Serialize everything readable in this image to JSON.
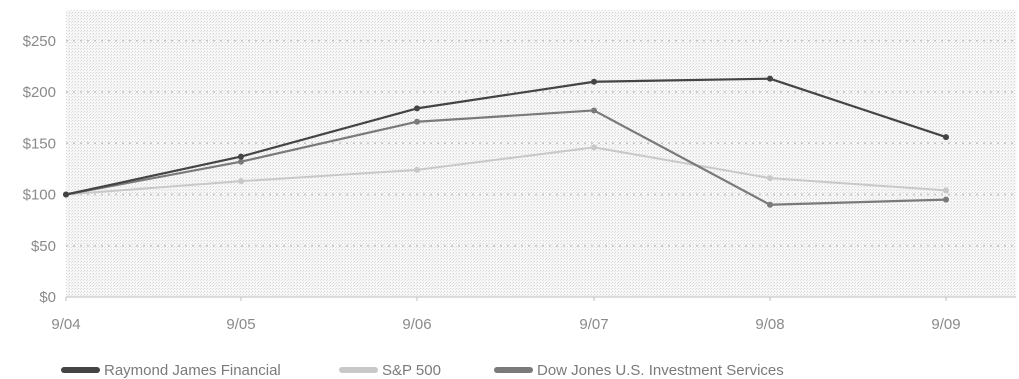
{
  "chart_data": {
    "type": "line",
    "categories": [
      "9/04",
      "9/05",
      "9/06",
      "9/07",
      "9/08",
      "9/09"
    ],
    "y_tick_labels": [
      "$0",
      "$50",
      "$100",
      "$150",
      "$200",
      "$250"
    ],
    "y_ticks": [
      0,
      50,
      100,
      150,
      200,
      250
    ],
    "ylim": [
      0,
      260
    ],
    "grid": true,
    "legend_position": "bottom",
    "series": [
      {
        "name": "Raymond James Financial",
        "values": [
          100,
          137,
          184,
          210,
          213,
          156
        ],
        "color": "#444444"
      },
      {
        "name": "S&P 500",
        "values": [
          100,
          113,
          124,
          146,
          116,
          104
        ],
        "color": "#c8c8c8"
      },
      {
        "name": "Dow Jones U.S. Investment Services",
        "values": [
          100,
          132,
          171,
          182,
          90,
          95
        ],
        "color": "#7a7a7a"
      }
    ]
  }
}
